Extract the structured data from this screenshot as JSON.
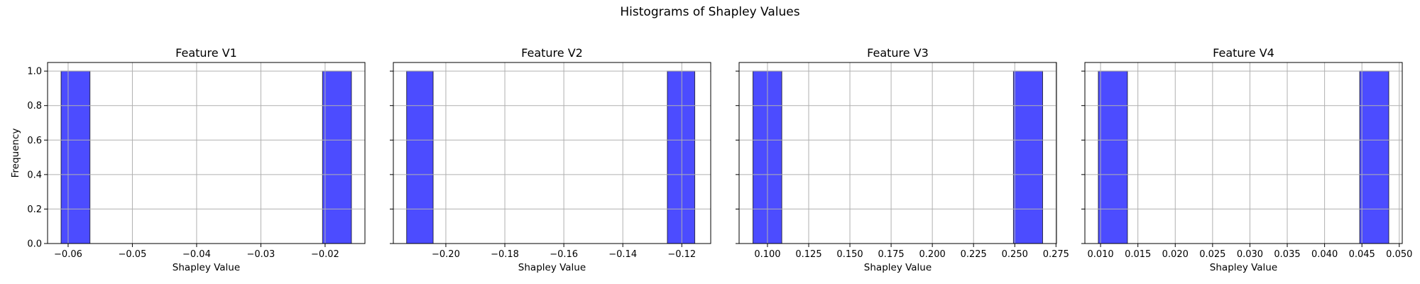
{
  "figure": {
    "suptitle": "Histograms of Shapley Values"
  },
  "chart_data": [
    {
      "type": "bar",
      "title": "Feature V1",
      "xlabel": "Shapley Value",
      "ylabel": "Frequency",
      "xlim": [
        -0.0632,
        -0.0138
      ],
      "ylim": [
        0,
        1.05
      ],
      "xticks": [
        -0.06,
        -0.05,
        -0.04,
        -0.03,
        -0.02
      ],
      "xtick_labels": [
        "−0.06",
        "−0.05",
        "−0.04",
        "−0.03",
        "−0.02"
      ],
      "yticks": [
        0,
        0.2,
        0.4,
        0.6,
        0.8,
        1.0
      ],
      "ytick_labels": [
        "0.0",
        "0.2",
        "0.4",
        "0.6",
        "0.8",
        "1.0"
      ],
      "bins": [
        {
          "x0": -0.0611,
          "x1": -0.0566,
          "count": 1
        },
        {
          "x0": -0.0204,
          "x1": -0.0159,
          "count": 1
        }
      ],
      "grid": true,
      "bar_color": "#0000ff"
    },
    {
      "type": "bar",
      "title": "Feature V2",
      "xlabel": "Shapley Value",
      "ylabel": "",
      "xlim": [
        -0.2178,
        -0.1102
      ],
      "ylim": [
        0,
        1.05
      ],
      "xticks": [
        -0.2,
        -0.18,
        -0.16,
        -0.14,
        -0.12
      ],
      "xtick_labels": [
        "−0.20",
        "−0.18",
        "−0.16",
        "−0.14",
        "−0.12"
      ],
      "yticks": [
        0,
        0.2,
        0.4,
        0.6,
        0.8,
        1.0
      ],
      "ytick_labels": [],
      "bins": [
        {
          "x0": -0.2133,
          "x1": -0.2043,
          "count": 1
        },
        {
          "x0": -0.1249,
          "x1": -0.1156,
          "count": 1
        }
      ],
      "grid": true,
      "bar_color": "#0000ff"
    },
    {
      "type": "bar",
      "title": "Feature V3",
      "xlabel": "Shapley Value",
      "ylabel": "",
      "xlim": [
        0.0828,
        0.2753
      ],
      "ylim": [
        0,
        1.05
      ],
      "xticks": [
        0.1,
        0.125,
        0.15,
        0.175,
        0.2,
        0.225,
        0.25,
        0.275
      ],
      "xtick_labels": [
        "0.100",
        "0.125",
        "0.150",
        "0.175",
        "0.200",
        "0.225",
        "0.250",
        "0.275"
      ],
      "yticks": [
        0,
        0.2,
        0.4,
        0.6,
        0.8,
        1.0
      ],
      "ytick_labels": [],
      "bins": [
        {
          "x0": 0.0912,
          "x1": 0.1087,
          "count": 1
        },
        {
          "x0": 0.2492,
          "x1": 0.2669,
          "count": 1
        }
      ],
      "grid": true,
      "bar_color": "#0000ff"
    },
    {
      "type": "bar",
      "title": "Feature V4",
      "xlabel": "Shapley Value",
      "ylabel": "",
      "xlim": [
        0.0079,
        0.0504
      ],
      "ylim": [
        0,
        1.05
      ],
      "xticks": [
        0.01,
        0.015,
        0.02,
        0.025,
        0.03,
        0.035,
        0.04,
        0.045,
        0.05
      ],
      "xtick_labels": [
        "0.010",
        "0.015",
        "0.020",
        "0.025",
        "0.030",
        "0.035",
        "0.040",
        "0.045",
        "0.050"
      ],
      "yticks": [
        0,
        0.2,
        0.4,
        0.6,
        0.8,
        1.0
      ],
      "ytick_labels": [],
      "bins": [
        {
          "x0": 0.0097,
          "x1": 0.0136,
          "count": 1
        },
        {
          "x0": 0.0447,
          "x1": 0.0486,
          "count": 1
        }
      ],
      "grid": true,
      "bar_color": "#0000ff"
    }
  ]
}
